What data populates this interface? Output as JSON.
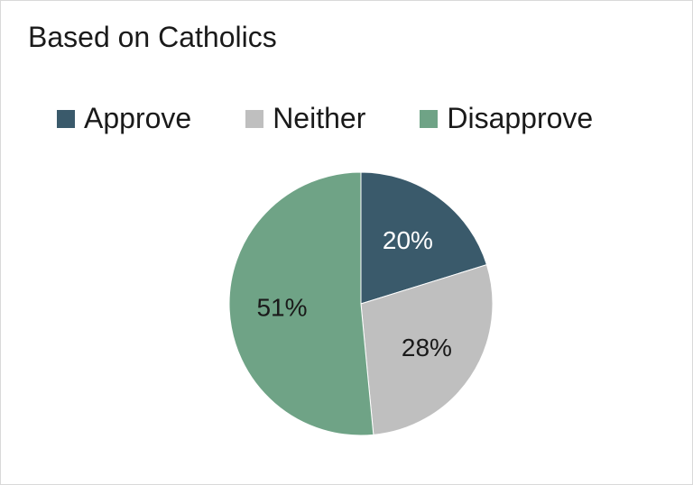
{
  "chart_data": {
    "type": "pie",
    "title": "Based on Catholics",
    "legend_position": "top",
    "slices": [
      {
        "name": "Approve",
        "value": 20,
        "label": "20%",
        "color": "#3a5a6b",
        "label_color": "#ffffff"
      },
      {
        "name": "Neither",
        "value": 28,
        "label": "28%",
        "color": "#bfbfbf",
        "label_color": "#1a1a1a"
      },
      {
        "name": "Disapprove",
        "value": 51,
        "label": "51%",
        "color": "#6fa386",
        "label_color": "#1a1a1a"
      }
    ]
  }
}
